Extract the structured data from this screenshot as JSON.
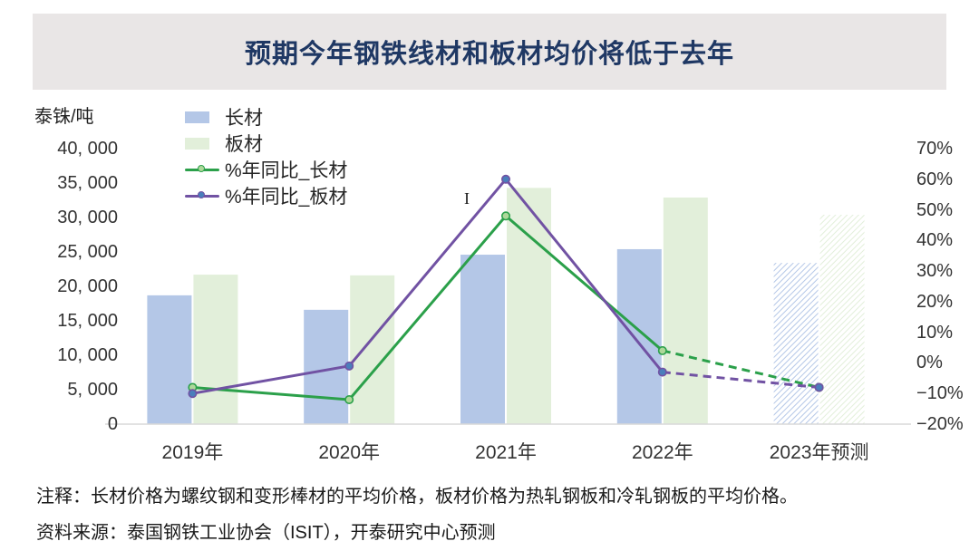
{
  "chart_data": {
    "type": "bar",
    "subtype": "grouped-bars-with-yoy-lines",
    "title": "预期今年钢铁线材和板材均价将低于去年",
    "categories": [
      "2019年",
      "2020年",
      "2021年",
      "2022年",
      "2023年预测"
    ],
    "left_axis": {
      "label": "泰铢/吨",
      "min": 0,
      "max": 40000,
      "tick_labels": [
        "40, 000",
        "35, 000",
        "30, 000",
        "25, 000",
        "20, 000",
        "15, 000",
        "10, 000",
        "5, 000",
        "0"
      ]
    },
    "right_axis": {
      "min": -20,
      "max": 70,
      "tick_labels": [
        "70%",
        "60%",
        "50%",
        "40%",
        "30%",
        "20%",
        "10%",
        "0%",
        "−10%",
        "−20%"
      ]
    },
    "bar_series": [
      {
        "name": "长材",
        "color": "#b4c7e7",
        "values": [
          18700,
          16600,
          24600,
          25400,
          23400
        ],
        "last_bar_hatched_forecast": true
      },
      {
        "name": "板材",
        "color": "#e2efda",
        "values": [
          21700,
          21600,
          34300,
          32900,
          30400
        ],
        "last_bar_hatched_forecast": true
      }
    ],
    "line_series": [
      {
        "name": "%年同比_长材",
        "color": "#2ba04a",
        "marker_fill": "#aed89a",
        "values": [
          -8,
          -12,
          48,
          4,
          -8
        ],
        "dashed_from_index": 3
      },
      {
        "name": "%年同比_板材",
        "color": "#7152a3",
        "marker_fill": "#4a7ebb",
        "values": [
          -10,
          -1,
          60,
          -3,
          -8
        ],
        "dashed_from_index": 3
      }
    ],
    "annotation": "I",
    "grid": false,
    "legend_position": "upper-left-inside"
  },
  "notes": {
    "note": "注释：长材价格为螺纹钢和变形棒材的平均价格，板材价格为热轧钢板和冷轧钢板的平均价格。",
    "source": "资料来源：泰国钢铁工业协会（ISIT），开泰研究中心预测"
  },
  "colors": {
    "title_text": "#1f3864",
    "title_band_bg": "#e9e6e6",
    "axis_line": "#d9d9d9",
    "axis_text": "#333333"
  }
}
